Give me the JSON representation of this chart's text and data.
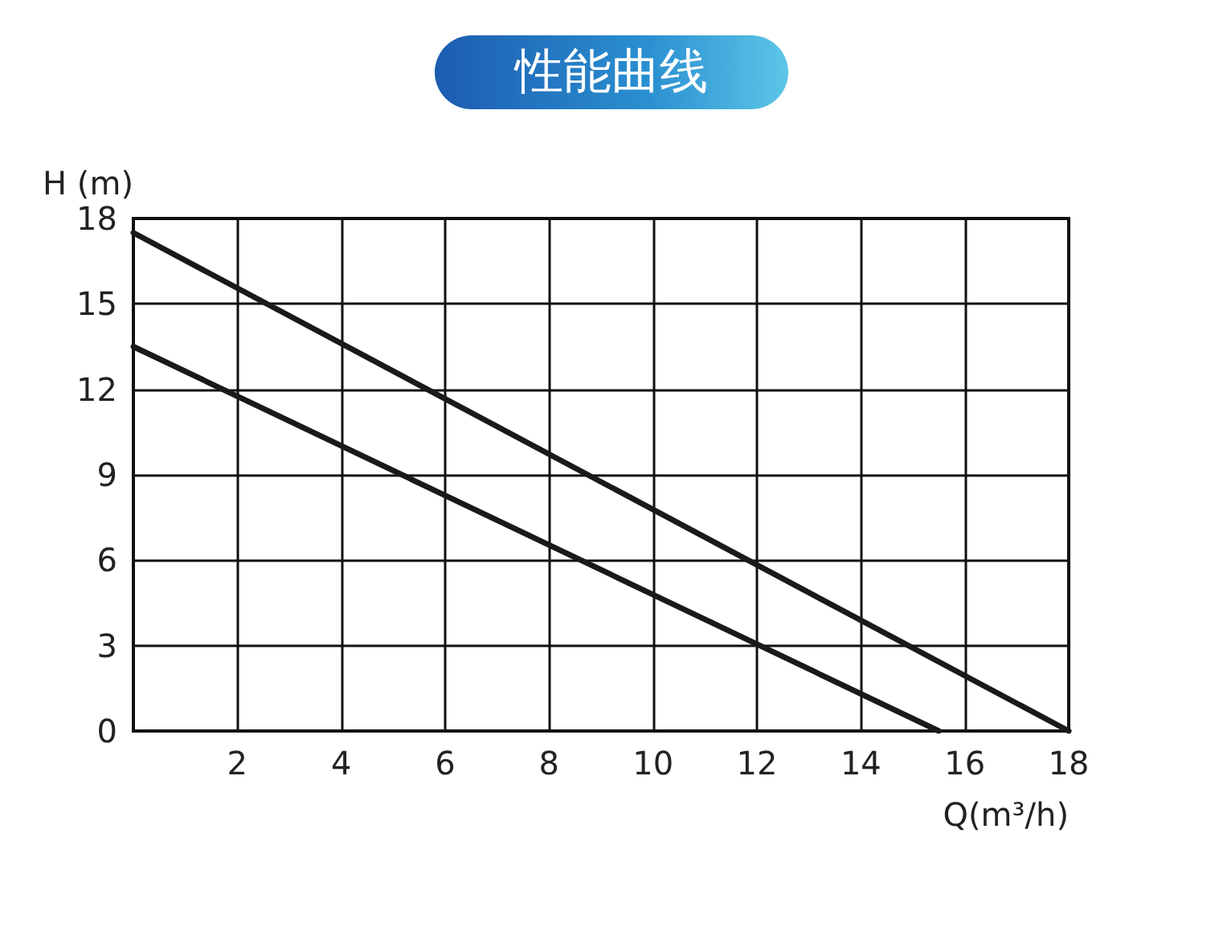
{
  "chart_data": {
    "type": "line",
    "title": "性能曲线",
    "xlabel": "Q(m³/h)",
    "ylabel": "H (m)",
    "series": [
      {
        "color": "#1a1a1a",
        "x": [
          0,
          18
        ],
        "values": [
          17.5,
          0
        ]
      },
      {
        "color": "#1a1a1a",
        "x": [
          0,
          15.5
        ],
        "values": [
          13.5,
          0
        ]
      }
    ],
    "xlim": [
      0,
      18
    ],
    "xticks": [
      {
        "value": 0,
        "label": null
      },
      2,
      4,
      6,
      8,
      10,
      12,
      14,
      16,
      18
    ],
    "ylim": [
      0,
      18
    ],
    "yticks": [
      0,
      3,
      6,
      9,
      12,
      15,
      18
    ],
    "grid": true,
    "marker": "none",
    "line_style": "solid"
  }
}
